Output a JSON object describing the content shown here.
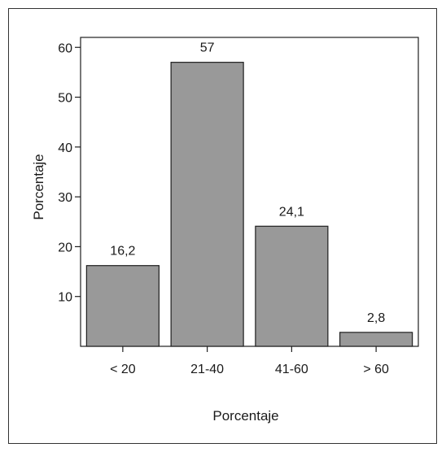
{
  "chart_data": {
    "type": "bar",
    "categories": [
      "< 20",
      "21-40",
      "41-60",
      "> 60"
    ],
    "values": [
      16.2,
      57,
      24.1,
      2.8
    ],
    "value_labels": [
      "16,2",
      "57",
      "24,1",
      "2,8"
    ],
    "title": "",
    "xlabel": "Porcentaje",
    "ylabel": "Porcentaje",
    "ylim": [
      0,
      62
    ],
    "yticks": [
      10,
      20,
      30,
      40,
      50,
      60
    ],
    "grid": false,
    "legend": "none",
    "colors": {
      "bar_fill": "#999999",
      "bar_stroke": "#1f1f1f",
      "axis": "#1f1f1f"
    }
  }
}
